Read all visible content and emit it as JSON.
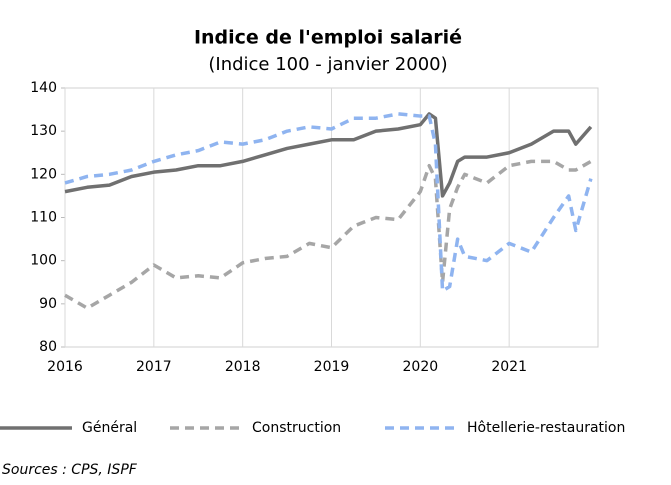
{
  "chart_data": {
    "type": "line",
    "title": "Indice de l'emploi salarié",
    "subtitle": "(Indice 100 - janvier 2000)",
    "source": "Sources : CPS, ISPF",
    "x": [
      2016.0,
      2016.25,
      2016.5,
      2016.75,
      2017.0,
      2017.25,
      2017.5,
      2017.75,
      2018.0,
      2018.25,
      2018.5,
      2018.75,
      2019.0,
      2019.25,
      2019.5,
      2019.75,
      2020.0,
      2020.1,
      2020.17,
      2020.25,
      2020.33,
      2020.42,
      2020.5,
      2020.75,
      2021.0,
      2021.25,
      2021.5,
      2021.67,
      2021.75,
      2021.92
    ],
    "series": [
      {
        "name": "Général",
        "color": "#707070",
        "dash": "none",
        "values": [
          116,
          117,
          117.5,
          119.5,
          120.5,
          121,
          122,
          122,
          123,
          124.5,
          126,
          127,
          128,
          128,
          130,
          130.5,
          131.5,
          134,
          133,
          115,
          118,
          123,
          124,
          124,
          125,
          127,
          130,
          130,
          127,
          131
        ]
      },
      {
        "name": "Construction",
        "color": "#a6a6a6",
        "dash": "9 6",
        "values": [
          92,
          89,
          92,
          95,
          99,
          96,
          96.5,
          96,
          99.5,
          100.5,
          101,
          104,
          103,
          108,
          110,
          109.5,
          116,
          122,
          119,
          95,
          112,
          117,
          120,
          118,
          122,
          123,
          123,
          121,
          121,
          123
        ]
      },
      {
        "name": "Hôtellerie-restauration",
        "color": "#8fb4f0",
        "dash": "9 6",
        "values": [
          118,
          119.5,
          120,
          121,
          123,
          124.5,
          125.5,
          127.5,
          127,
          128,
          130,
          131,
          130.5,
          133,
          133,
          134,
          133.5,
          133.5,
          127,
          93,
          94,
          105,
          101,
          100,
          104,
          102,
          110,
          115,
          107,
          119
        ]
      }
    ],
    "xlim": [
      2016,
      2022
    ],
    "xticks": [
      2016,
      2017,
      2018,
      2019,
      2020,
      2021
    ],
    "ylim": [
      80,
      140
    ],
    "yticks": [
      80,
      90,
      100,
      110,
      120,
      130,
      140
    ],
    "grid": true
  }
}
